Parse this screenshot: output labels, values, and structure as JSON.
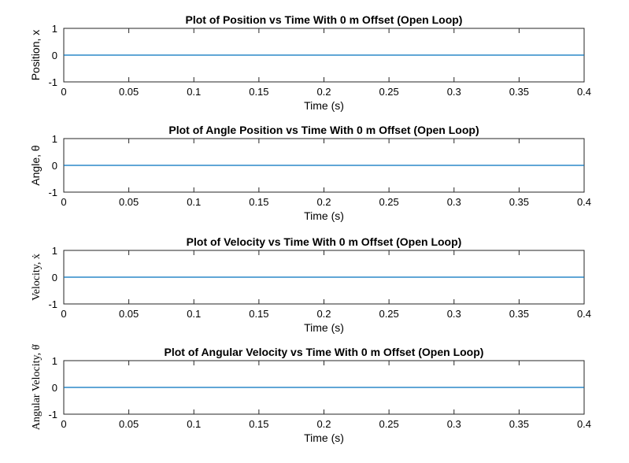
{
  "chart_data": [
    {
      "type": "line",
      "title": "Plot of Position vs Time With 0 m Offset (Open Loop)",
      "xlabel": "Time (s)",
      "ylabel": "Position, x",
      "xlim": [
        0,
        0.4
      ],
      "ylim": [
        -1,
        1
      ],
      "xticks": [
        "0",
        "0.05",
        "0.1",
        "0.15",
        "0.2",
        "0.25",
        "0.3",
        "0.35",
        "0.4"
      ],
      "yticks": [
        "-1",
        "0",
        "1"
      ],
      "series": [
        {
          "x": [
            0,
            0.4
          ],
          "y": [
            0,
            0
          ],
          "color": "#0072bd"
        }
      ],
      "grid": false
    },
    {
      "type": "line",
      "title": "Plot of Angle Position vs Time With 0 m Offset (Open Loop)",
      "xlabel": "Time (s)",
      "ylabel": "Angle, θ",
      "xlim": [
        0,
        0.4
      ],
      "ylim": [
        -1,
        1
      ],
      "xticks": [
        "0",
        "0.05",
        "0.1",
        "0.15",
        "0.2",
        "0.25",
        "0.3",
        "0.35",
        "0.4"
      ],
      "yticks": [
        "-1",
        "0",
        "1"
      ],
      "series": [
        {
          "x": [
            0,
            0.4
          ],
          "y": [
            0,
            0
          ],
          "color": "#0072bd"
        }
      ],
      "grid": false
    },
    {
      "type": "line",
      "title": "Plot of Velocity vs Time With 0 m Offset (Open Loop)",
      "xlabel": "Time (s)",
      "ylabel": "Velocity, ẋ",
      "xlim": [
        0,
        0.4
      ],
      "ylim": [
        -1,
        1
      ],
      "xticks": [
        "0",
        "0.05",
        "0.1",
        "0.15",
        "0.2",
        "0.25",
        "0.3",
        "0.35",
        "0.4"
      ],
      "yticks": [
        "-1",
        "0",
        "1"
      ],
      "series": [
        {
          "x": [
            0,
            0.4
          ],
          "y": [
            0,
            0
          ],
          "color": "#0072bd"
        }
      ],
      "grid": false
    },
    {
      "type": "line",
      "title": "Plot of Angular Velocity vs Time With 0 m Offset (Open Loop)",
      "xlabel": "Time (s)",
      "ylabel": "Angular Velocity, θ̇",
      "xlim": [
        0,
        0.4
      ],
      "ylim": [
        -1,
        1
      ],
      "xticks": [
        "0",
        "0.05",
        "0.1",
        "0.15",
        "0.2",
        "0.25",
        "0.3",
        "0.35",
        "0.4"
      ],
      "yticks": [
        "-1",
        "0",
        "1"
      ],
      "series": [
        {
          "x": [
            0,
            0.4
          ],
          "y": [
            0,
            0
          ],
          "color": "#0072bd"
        }
      ],
      "grid": false
    }
  ]
}
